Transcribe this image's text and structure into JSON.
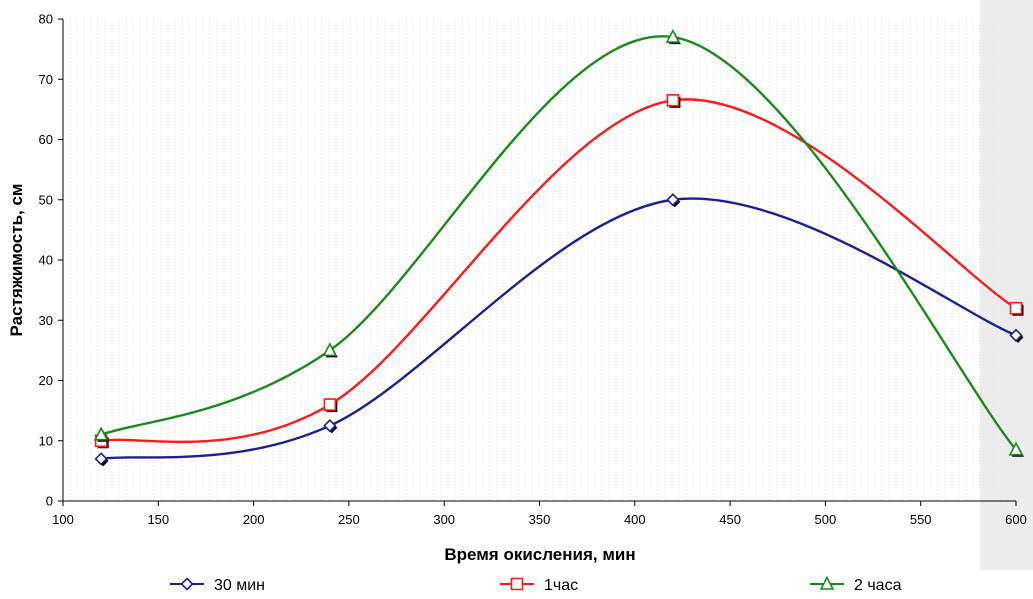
{
  "chart_data": {
    "type": "line",
    "xlabel": "Время окисления, мин",
    "ylabel": "Растяжимость, см",
    "xlim": [
      100,
      600
    ],
    "ylim": [
      0,
      80
    ],
    "x_ticks": [
      100,
      150,
      200,
      250,
      300,
      350,
      400,
      450,
      500,
      550,
      600
    ],
    "y_ticks": [
      0,
      10,
      20,
      30,
      40,
      50,
      60,
      70,
      80
    ],
    "x": [
      120,
      240,
      420,
      600
    ],
    "series": [
      {
        "name": "30 мин",
        "values": [
          7.0,
          12.5,
          50.0,
          27.5
        ],
        "color": "#1f1f8f",
        "marker": "diamond"
      },
      {
        "name": "1час",
        "values": [
          10.0,
          16.0,
          66.5,
          32.0
        ],
        "color": "#ff1a1a",
        "marker": "square"
      },
      {
        "name": "2 часа",
        "values": [
          11.0,
          25.0,
          77.0,
          8.5
        ],
        "color": "#1a8a1a",
        "marker": "triangle"
      }
    ],
    "smooth": true,
    "grid": "dotted vertical",
    "legend_position": "bottom"
  }
}
